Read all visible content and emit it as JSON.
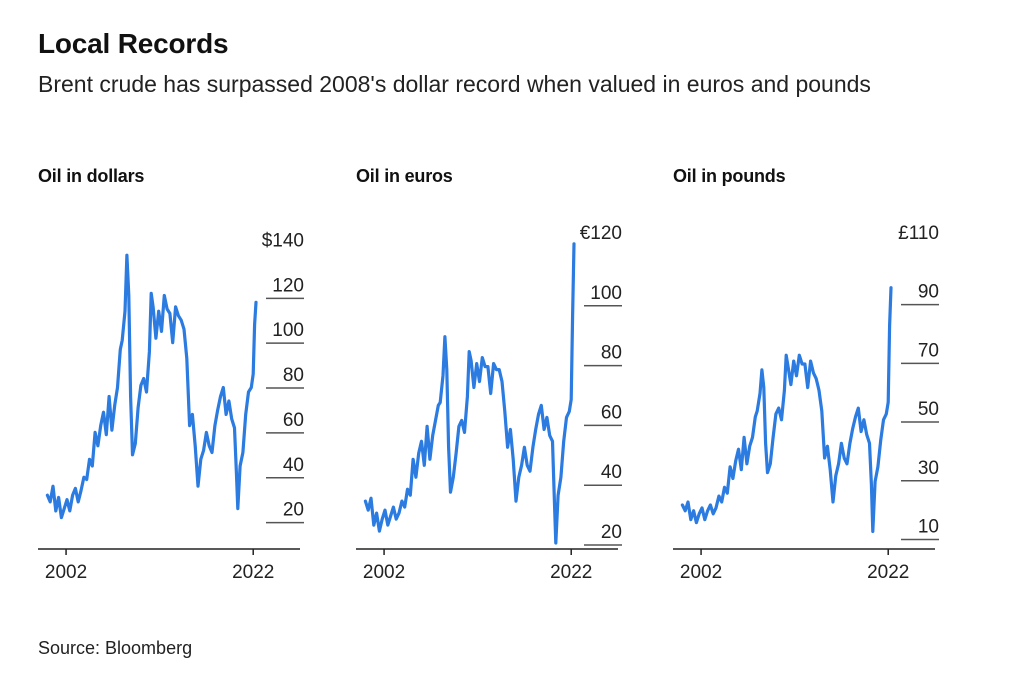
{
  "header": {
    "title": "Local Records",
    "subtitle": "Brent crude has surpassed 2008's dollar record when valued in euros and pounds"
  },
  "footer": {
    "source": "Source: Bloomberg"
  },
  "colors": {
    "line": "#2b7be0",
    "axis": "#222222",
    "grid": "#555555"
  },
  "chart_data": [
    {
      "type": "line",
      "title": "Oil in dollars",
      "x_ticks": [
        2002,
        2022
      ],
      "x_tick_labels": [
        "2002",
        "2022"
      ],
      "xlim": [
        1999,
        2027
      ],
      "ylim": [
        2,
        146
      ],
      "y_ticks": [
        20,
        40,
        60,
        80,
        100,
        120,
        140
      ],
      "y_tick_labels": [
        "20",
        "40",
        "60",
        "80",
        "100",
        "120",
        "$140"
      ],
      "series": [
        {
          "x": [
            2000.0,
            2000.3,
            2000.6,
            2000.9,
            2001.2,
            2001.5,
            2001.8,
            2002.1,
            2002.4,
            2002.7,
            2003.0,
            2003.3,
            2003.6,
            2003.9,
            2004.2,
            2004.5,
            2004.8,
            2005.1,
            2005.4,
            2005.7,
            2006.0,
            2006.3,
            2006.6,
            2006.9,
            2007.2,
            2007.5,
            2007.8,
            2008.0,
            2008.3,
            2008.5,
            2008.7,
            2008.9,
            2009.1,
            2009.4,
            2009.7,
            2010.0,
            2010.3,
            2010.6,
            2010.9,
            2011.1,
            2011.3,
            2011.6,
            2011.9,
            2012.2,
            2012.5,
            2012.8,
            2013.1,
            2013.4,
            2013.7,
            2014.0,
            2014.3,
            2014.6,
            2014.9,
            2015.2,
            2015.5,
            2015.8,
            2016.1,
            2016.4,
            2016.7,
            2017.0,
            2017.3,
            2017.6,
            2017.9,
            2018.2,
            2018.5,
            2018.8,
            2019.1,
            2019.4,
            2019.7,
            2020.0,
            2020.2,
            2020.35,
            2020.6,
            2020.9,
            2021.2,
            2021.5,
            2021.8,
            2022.0,
            2022.15,
            2022.3
          ],
          "y": [
            26,
            23,
            30,
            19,
            25,
            16,
            20,
            24,
            19,
            26,
            29,
            23,
            28,
            34,
            33,
            42,
            39,
            54,
            48,
            57,
            63,
            53,
            70,
            55,
            66,
            74,
            91,
            95,
            108,
            133,
            115,
            70,
            44,
            49,
            65,
            75,
            78,
            72,
            90,
            116,
            110,
            96,
            108,
            99,
            115,
            109,
            107,
            94,
            110,
            106,
            104,
            100,
            87,
            57,
            62,
            48,
            30,
            42,
            46,
            54,
            48,
            45,
            57,
            64,
            70,
            74,
            62,
            68,
            60,
            56,
            36,
            20,
            39,
            45,
            62,
            72,
            74,
            80,
            102,
            112
          ]
        }
      ]
    },
    {
      "type": "line",
      "title": "Oil in euros",
      "x_ticks": [
        2002,
        2022
      ],
      "x_tick_labels": [
        "2002",
        "2022"
      ],
      "xlim": [
        1999,
        2027
      ],
      "ylim": [
        14,
        122
      ],
      "y_ticks": [
        20,
        40,
        60,
        80,
        100,
        120
      ],
      "y_tick_labels": [
        "20",
        "40",
        "60",
        "80",
        "100",
        "€120"
      ],
      "series": [
        {
          "x": [
            2000.0,
            2000.3,
            2000.6,
            2000.9,
            2001.2,
            2001.5,
            2001.8,
            2002.1,
            2002.4,
            2002.7,
            2003.0,
            2003.3,
            2003.6,
            2003.9,
            2004.2,
            2004.5,
            2004.8,
            2005.1,
            2005.4,
            2005.7,
            2006.0,
            2006.3,
            2006.6,
            2006.9,
            2007.2,
            2007.5,
            2007.8,
            2008.0,
            2008.3,
            2008.5,
            2008.7,
            2008.9,
            2009.1,
            2009.4,
            2009.7,
            2010.0,
            2010.3,
            2010.6,
            2010.9,
            2011.1,
            2011.3,
            2011.6,
            2011.9,
            2012.2,
            2012.5,
            2012.8,
            2013.1,
            2013.4,
            2013.7,
            2014.0,
            2014.3,
            2014.6,
            2014.9,
            2015.2,
            2015.5,
            2015.8,
            2016.1,
            2016.4,
            2016.7,
            2017.0,
            2017.3,
            2017.6,
            2017.9,
            2018.2,
            2018.5,
            2018.8,
            2019.1,
            2019.4,
            2019.7,
            2020.0,
            2020.2,
            2020.35,
            2020.6,
            2020.9,
            2021.2,
            2021.5,
            2021.8,
            2022.0,
            2022.15,
            2022.3
          ],
          "y": [
            30,
            27,
            31,
            22,
            26,
            20,
            24,
            27,
            22,
            25,
            28,
            24,
            26,
            30,
            28,
            34,
            32,
            44,
            38,
            46,
            50,
            42,
            55,
            44,
            52,
            57,
            62,
            63,
            72,
            85,
            74,
            48,
            33,
            38,
            46,
            55,
            57,
            53,
            65,
            80,
            77,
            68,
            76,
            70,
            78,
            75,
            75,
            66,
            76,
            74,
            74,
            70,
            60,
            48,
            54,
            44,
            30,
            38,
            42,
            48,
            42,
            40,
            48,
            54,
            59,
            62,
            54,
            58,
            52,
            50,
            30,
            16,
            32,
            38,
            50,
            58,
            60,
            64,
            92,
            116
          ]
        }
      ]
    },
    {
      "type": "line",
      "title": "Oil in pounds",
      "x_ticks": [
        2002,
        2022
      ],
      "x_tick_labels": [
        "2002",
        "2022"
      ],
      "xlim": [
        1999,
        2027
      ],
      "ylim": [
        2,
        112
      ],
      "y_ticks": [
        10,
        30,
        50,
        70,
        90,
        110
      ],
      "y_tick_labels": [
        "10",
        "30",
        "50",
        "70",
        "90",
        "£110"
      ],
      "series": [
        {
          "x": [
            2000.0,
            2000.3,
            2000.6,
            2000.9,
            2001.2,
            2001.5,
            2001.8,
            2002.1,
            2002.4,
            2002.7,
            2003.0,
            2003.3,
            2003.6,
            2003.9,
            2004.2,
            2004.5,
            2004.8,
            2005.1,
            2005.4,
            2005.7,
            2006.0,
            2006.3,
            2006.6,
            2006.9,
            2007.2,
            2007.5,
            2007.8,
            2008.0,
            2008.3,
            2008.5,
            2008.7,
            2008.9,
            2009.1,
            2009.4,
            2009.7,
            2010.0,
            2010.3,
            2010.6,
            2010.9,
            2011.1,
            2011.3,
            2011.6,
            2011.9,
            2012.2,
            2012.5,
            2012.8,
            2013.1,
            2013.4,
            2013.7,
            2014.0,
            2014.3,
            2014.6,
            2014.9,
            2015.2,
            2015.5,
            2015.8,
            2016.1,
            2016.4,
            2016.7,
            2017.0,
            2017.3,
            2017.6,
            2017.9,
            2018.2,
            2018.5,
            2018.8,
            2019.1,
            2019.4,
            2019.7,
            2020.0,
            2020.2,
            2020.35,
            2020.6,
            2020.9,
            2021.2,
            2021.5,
            2021.8,
            2022.0,
            2022.15,
            2022.3
          ],
          "y": [
            17,
            15,
            18,
            12,
            15,
            11,
            14,
            16,
            12,
            15,
            17,
            14,
            16,
            20,
            18,
            23,
            21,
            30,
            26,
            32,
            36,
            29,
            40,
            31,
            37,
            40,
            47,
            49,
            55,
            63,
            57,
            38,
            28,
            31,
            40,
            48,
            50,
            46,
            56,
            68,
            64,
            58,
            66,
            61,
            68,
            65,
            65,
            57,
            66,
            62,
            60,
            56,
            49,
            33,
            37,
            29,
            18,
            27,
            31,
            38,
            33,
            31,
            38,
            43,
            47,
            50,
            42,
            46,
            41,
            38,
            24,
            8,
            25,
            30,
            39,
            46,
            48,
            52,
            78,
            91
          ]
        }
      ]
    }
  ]
}
